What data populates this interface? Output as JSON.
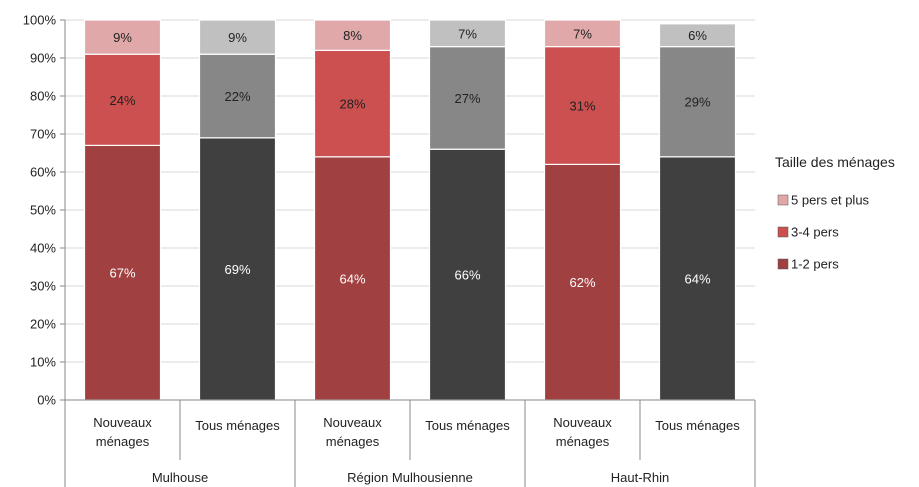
{
  "chart_data": {
    "type": "bar",
    "stacked": true,
    "percent": true,
    "groups": [
      {
        "label": "Mulhouse",
        "categories": [
          "Nouveaux ménages",
          "Tous ménages"
        ]
      },
      {
        "label": "Région Mulhousienne",
        "categories": [
          "Nouveaux ménages",
          "Tous ménages"
        ]
      },
      {
        "label": "Haut-Rhin",
        "categories": [
          "Nouveaux ménages",
          "Tous ménages"
        ]
      }
    ],
    "series": [
      {
        "name": "1-2 pers",
        "values": [
          67,
          69,
          64,
          66,
          62,
          64
        ],
        "labels": [
          "67%",
          "69%",
          "64%",
          "66%",
          "62%",
          "64%"
        ]
      },
      {
        "name": "3-4 pers",
        "values": [
          24,
          22,
          28,
          27,
          31,
          29
        ],
        "labels": [
          "24%",
          "22%",
          "28%",
          "27%",
          "31%",
          "29%"
        ]
      },
      {
        "name": "5 pers et plus",
        "values": [
          9,
          9,
          8,
          7,
          7,
          6
        ],
        "labels": [
          "9%",
          "9%",
          "8%",
          "7%",
          "7%",
          "6%"
        ]
      }
    ],
    "colors": {
      "nouveaux": [
        "#a04040",
        "#cc5050",
        "#e0a8a8"
      ],
      "tous": [
        "#404040",
        "#878787",
        "#c0c0c0"
      ]
    },
    "label_colors": {
      "nouveaux": [
        "#ffffff",
        "#222222",
        "#222222"
      ],
      "tous": [
        "#ffffff",
        "#222222",
        "#222222"
      ]
    },
    "ylim": [
      0,
      100
    ],
    "y_ticks": [
      "0%",
      "10%",
      "20%",
      "30%",
      "40%",
      "50%",
      "60%",
      "70%",
      "80%",
      "90%",
      "100%"
    ],
    "grid": true,
    "legend": {
      "title": "Taille des ménages",
      "position": "right",
      "items": [
        "5 pers et plus",
        "3-4 pers",
        "1-2 pers"
      ],
      "item_colors": [
        "#e0a8a8",
        "#cc5050",
        "#a04040"
      ]
    }
  }
}
